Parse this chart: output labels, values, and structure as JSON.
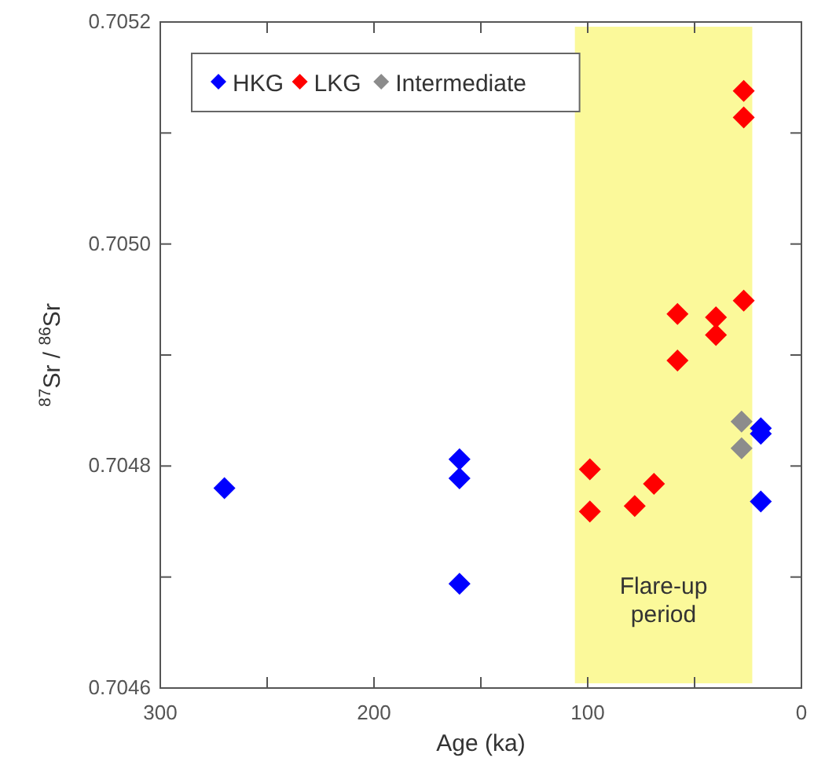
{
  "chart_data": {
    "type": "scatter",
    "xlabel": "Age (ka)",
    "ylabel": "$^{87}$Sr / $^{86}$Sr",
    "xlim": [
      300,
      0
    ],
    "xticks": [
      300,
      {
        "value": 250,
        "label": null
      },
      200,
      {
        "value": 150,
        "label": null
      },
      100,
      {
        "value": 50,
        "label": null
      },
      0
    ],
    "ylim": [
      0.7046,
      0.7052
    ],
    "yticks": [
      0.7046,
      {
        "value": 0.7047,
        "label": null
      },
      "0.7048",
      {
        "value": 0.7049,
        "label": null
      },
      "0.7050",
      {
        "value": 0.7051,
        "label": null
      },
      0.7052
    ],
    "marker": "diamond",
    "legend": "top left",
    "grid": false,
    "bands": [
      {
        "axis": "x",
        "from": 106,
        "to": 23,
        "label": "Flare-up period",
        "color": "#fbf99a"
      }
    ],
    "series": [
      {
        "name": "HKG",
        "color": "#0000ff",
        "x": [
          270,
          160,
          160,
          160,
          19,
          19,
          19
        ],
        "values": [
          0.70478,
          0.704806,
          0.704789,
          0.704694,
          0.704834,
          0.704829,
          0.704768
        ]
      },
      {
        "name": "LKG",
        "color": "#ff0000",
        "x": [
          99,
          99,
          78,
          69,
          58,
          58,
          40,
          40,
          27,
          27,
          27
        ],
        "values": [
          0.704797,
          0.704759,
          0.704764,
          0.704784,
          0.704937,
          0.704895,
          0.704934,
          0.704918,
          0.704949,
          0.705138,
          0.705114
        ]
      },
      {
        "name": "Intermediate",
        "color": "#8c8c8c",
        "x": [
          28,
          28
        ],
        "values": [
          0.70484,
          0.704816
        ]
      }
    ]
  }
}
